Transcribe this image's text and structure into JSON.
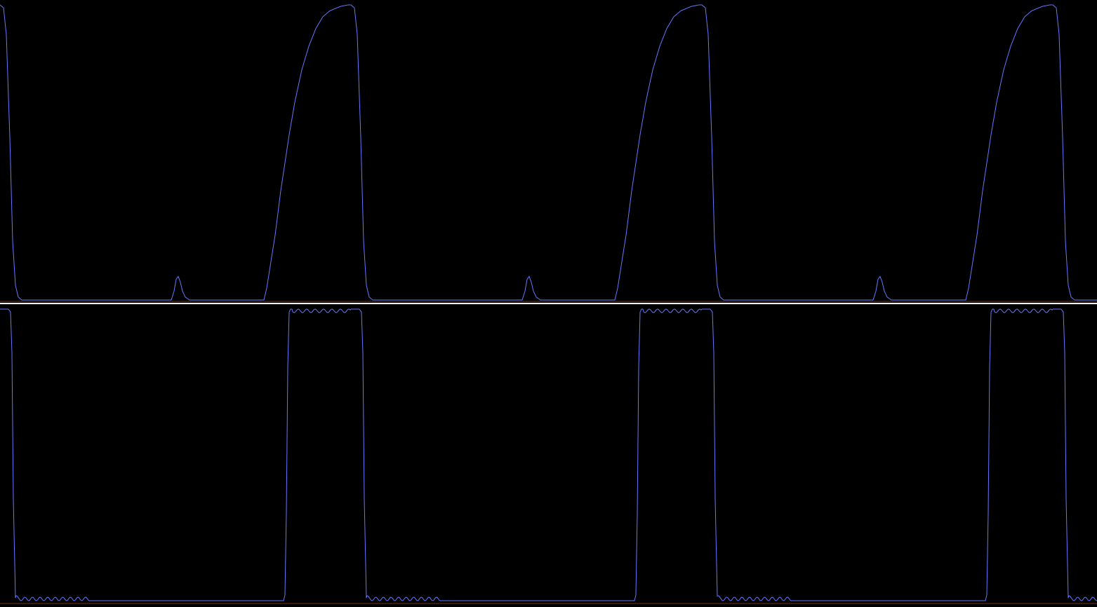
{
  "colors": {
    "background": "#000000",
    "trace": "#6677ff",
    "divider": "#ffffff",
    "baseline": "#6b3a12"
  },
  "chart_data": [
    {
      "type": "line",
      "title": "",
      "xlabel": "",
      "ylabel": "",
      "grid": false,
      "period": 500,
      "xlim": [
        0,
        1563
      ],
      "ylim": [
        0,
        1
      ],
      "series": [
        {
          "x": [
            0,
            5,
            9,
            14,
            18,
            22,
            26,
            31,
            60,
            200,
            244,
            248,
            251,
            254,
            257,
            260,
            264,
            270,
            280,
            376,
            380,
            384,
            392,
            400,
            412,
            420,
            430,
            440,
            450,
            460,
            470,
            485,
            496,
            503,
            506,
            510,
            513,
            516,
            519,
            522,
            526,
            530
          ],
          "y": [
            1.0,
            0.99,
            0.9,
            0.55,
            0.2,
            0.05,
            0.01,
            0.0,
            0.0,
            0.0,
            0.0,
            0.03,
            0.07,
            0.08,
            0.06,
            0.03,
            0.01,
            0.0,
            0.0,
            0.0,
            0.04,
            0.1,
            0.22,
            0.37,
            0.56,
            0.67,
            0.78,
            0.86,
            0.92,
            0.96,
            0.98,
            0.995,
            1.0,
            1.0,
            0.99,
            0.82,
            0.55,
            0.25,
            0.08,
            0.02,
            0.005,
            0.0
          ]
        }
      ]
    },
    {
      "type": "line",
      "title": "",
      "xlabel": "",
      "ylabel": "",
      "grid": false,
      "period": 500,
      "xlim": [
        0,
        1563
      ],
      "ylim": [
        0,
        1
      ],
      "ripple": {
        "amplitude": 0.012,
        "period": 12
      },
      "series": [
        {
          "x": [
            0,
            12,
            15,
            17,
            19,
            22,
            26,
            120,
            126,
            128,
            300,
            404,
            406,
            408,
            410,
            412,
            414,
            416,
            418,
            420,
            508,
            512,
            514,
            516,
            518
          ],
          "y": [
            1.0,
            1.0,
            0.99,
            0.85,
            0.35,
            0.01,
            0.0,
            0.0,
            0.0,
            0.0,
            0.0,
            0.0,
            0.02,
            0.3,
            0.8,
            0.99,
            1.0,
            1.0,
            1.0,
            1.0,
            1.0,
            1.0,
            0.8,
            0.2,
            0.0
          ]
        }
      ]
    }
  ]
}
